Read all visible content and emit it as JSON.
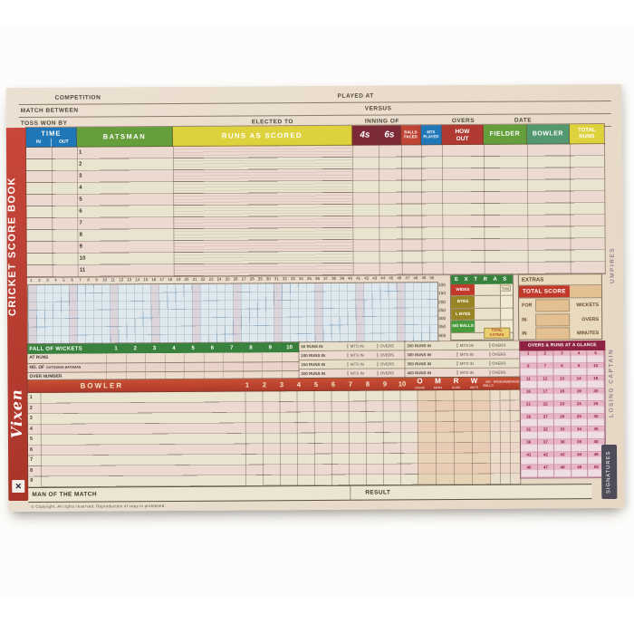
{
  "form": {
    "competition": "COMPETITION",
    "played_at": "PLAYED AT",
    "match_between": "MATCH BETWEEN",
    "versus": "VERSUS",
    "toss_won_by": "TOSS WON BY",
    "elected_to": "ELECTED TO",
    "inning_of": "INNING OF",
    "overs": "OVERS",
    "date": "DATE"
  },
  "sidebar": {
    "title": "CRICKET SCORE BOOK",
    "brand": "Vixen",
    "logo_glyph": "✕"
  },
  "batting": {
    "time": "TIME",
    "in": "IN",
    "out": "OUT",
    "batsman": "BATSMAN",
    "runs_as_scored": "RUNS AS SCORED",
    "fours": "4s",
    "sixes": "6s",
    "balls_faced": "BALLS FACED",
    "mts_played": "MTS PLAYED",
    "how": "HOW",
    "out_word": "OUT",
    "fielder": "FIELDER",
    "bowler": "BOWLER",
    "total": "TOTAL",
    "runs": "RUNS",
    "row_numbers": [
      "1",
      "2",
      "3",
      "4",
      "5",
      "6",
      "7",
      "8",
      "9",
      "10",
      "11"
    ]
  },
  "shared": {
    "numbers_1_50": [
      "1",
      "2",
      "3",
      "4",
      "5",
      "6",
      "7",
      "8",
      "9",
      "10",
      "11",
      "12",
      "13",
      "14",
      "15",
      "16",
      "17",
      "18",
      "19",
      "20",
      "21",
      "22",
      "23",
      "24",
      "25",
      "26",
      "27",
      "28",
      "29",
      "30",
      "31",
      "32",
      "33",
      "34",
      "35",
      "36",
      "37",
      "38",
      "39",
      "40",
      "41",
      "42",
      "43",
      "44",
      "45",
      "46",
      "47",
      "48",
      "49",
      "50"
    ],
    "numbers_1_10": [
      "1",
      "2",
      "3",
      "4",
      "5",
      "6",
      "7",
      "8",
      "9",
      "10"
    ]
  },
  "tally": {
    "milestones": [
      "100",
      "150",
      "200",
      "250",
      "300",
      "350",
      "400"
    ]
  },
  "extras": {
    "header": "E X T R A S",
    "total_label": "Total",
    "wides": "WIDES",
    "byes": "BYES",
    "l_byes": "L BYES",
    "no_balls": "NO BALLS",
    "total_extras": "TOTAL EXTRAS"
  },
  "score_panel": {
    "extras": "EXTRAS",
    "total_score": "TOTAL SCORE",
    "for": "FOR",
    "wickets": "WICKETS",
    "in1": "IN",
    "overs": "OVERS",
    "in2": "IN",
    "minutes": "MINUTES"
  },
  "fow": {
    "title": "FALL OF WICKETS",
    "at_runs": "AT RUNS",
    "no_of": "NO. OF",
    "outgoing": "OUTGOING BATSMAN",
    "over_number": "OVER NUMBER"
  },
  "runs_in": {
    "mts": "MTS IN",
    "overs_label": "OVERS",
    "left": [
      "50 RUNS IN",
      "100 RUNS IN",
      "150 RUNS IN",
      "200 RUNS IN"
    ],
    "right": [
      "250 RUNS IN",
      "300 RUNS IN",
      "350 RUNS IN",
      "400 RUNS IN"
    ]
  },
  "glance": {
    "title": "OVERS & RUNS AT A GLANCE"
  },
  "bowling": {
    "title": "BOWLER",
    "omrw_letters": [
      "O",
      "M",
      "R",
      "W"
    ],
    "omrw_subs": [
      "OVERS",
      "MDNS",
      "RUNS",
      "WKTS"
    ],
    "no_balls": "NO BALLS",
    "wides": "WIDES",
    "average": "AVERAGE",
    "row_numbers": [
      "1",
      "2",
      "3",
      "4",
      "5",
      "6",
      "7",
      "8",
      "9"
    ]
  },
  "footer": {
    "man_of_the_match": "MAN OF THE MATCH",
    "result": "RESULT",
    "copyright": "© Copyright. All rights reserved. Reproduction of copy is prohibited."
  },
  "margin": {
    "umpires": "UMPIRES",
    "losing_captain": "LOSING CAPTAIN",
    "scorer": "SCORER",
    "signatures": "SIGNATURES"
  },
  "colors": {
    "red": "#c0392b",
    "blue": "#2077b8",
    "green": "#649f3c",
    "dark_green": "#39823d",
    "yellow": "#ddd23b",
    "maroon": "#7e2a36",
    "glance_header": "#8e2243",
    "tan": "#e4bf92",
    "page": "#e9dccb"
  }
}
